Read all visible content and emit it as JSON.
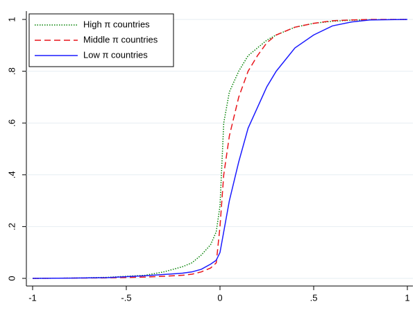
{
  "chart_data": {
    "type": "line",
    "x": [
      -1,
      -0.8,
      -0.6,
      -0.4,
      -0.3,
      -0.2,
      -0.15,
      -0.1,
      -0.05,
      -0.02,
      0,
      0.02,
      0.05,
      0.1,
      0.15,
      0.2,
      0.25,
      0.3,
      0.4,
      0.5,
      0.6,
      0.7,
      0.8,
      1
    ],
    "series": [
      {
        "name": "High π countries",
        "color": "#008000",
        "style": "dotted",
        "values": [
          0,
          0.001,
          0.004,
          0.012,
          0.025,
          0.045,
          0.06,
          0.09,
          0.13,
          0.18,
          0.28,
          0.6,
          0.72,
          0.8,
          0.86,
          0.89,
          0.92,
          0.94,
          0.97,
          0.985,
          0.993,
          0.997,
          0.999,
          1
        ]
      },
      {
        "name": "Middle π countries",
        "color": "#e8141a",
        "style": "dashed",
        "values": [
          0,
          0.001,
          0.002,
          0.005,
          0.008,
          0.012,
          0.016,
          0.025,
          0.04,
          0.06,
          0.2,
          0.4,
          0.55,
          0.7,
          0.8,
          0.86,
          0.91,
          0.94,
          0.97,
          0.985,
          0.995,
          0.998,
          1,
          1
        ]
      },
      {
        "name": "Low π countries",
        "color": "#1a1aff",
        "style": "solid",
        "values": [
          0,
          0.001,
          0.003,
          0.01,
          0.015,
          0.02,
          0.025,
          0.035,
          0.055,
          0.07,
          0.1,
          0.18,
          0.3,
          0.45,
          0.58,
          0.66,
          0.74,
          0.8,
          0.89,
          0.94,
          0.975,
          0.99,
          0.998,
          1
        ]
      }
    ],
    "xlim": [
      -1,
      1
    ],
    "xticks": [
      -1,
      {
        "value": -0.5,
        "label": "-.5"
      },
      0,
      {
        "value": 0.5,
        "label": ".5"
      },
      1
    ],
    "ylim": [
      0,
      1
    ],
    "yticks": [
      0,
      {
        "value": 0.2,
        "label": ".2"
      },
      {
        "value": 0.4,
        "label": ".4"
      },
      {
        "value": 0.6,
        "label": ".6"
      },
      {
        "value": 0.8,
        "label": ".8"
      },
      1
    ],
    "grid": true,
    "legend": "top-left"
  }
}
